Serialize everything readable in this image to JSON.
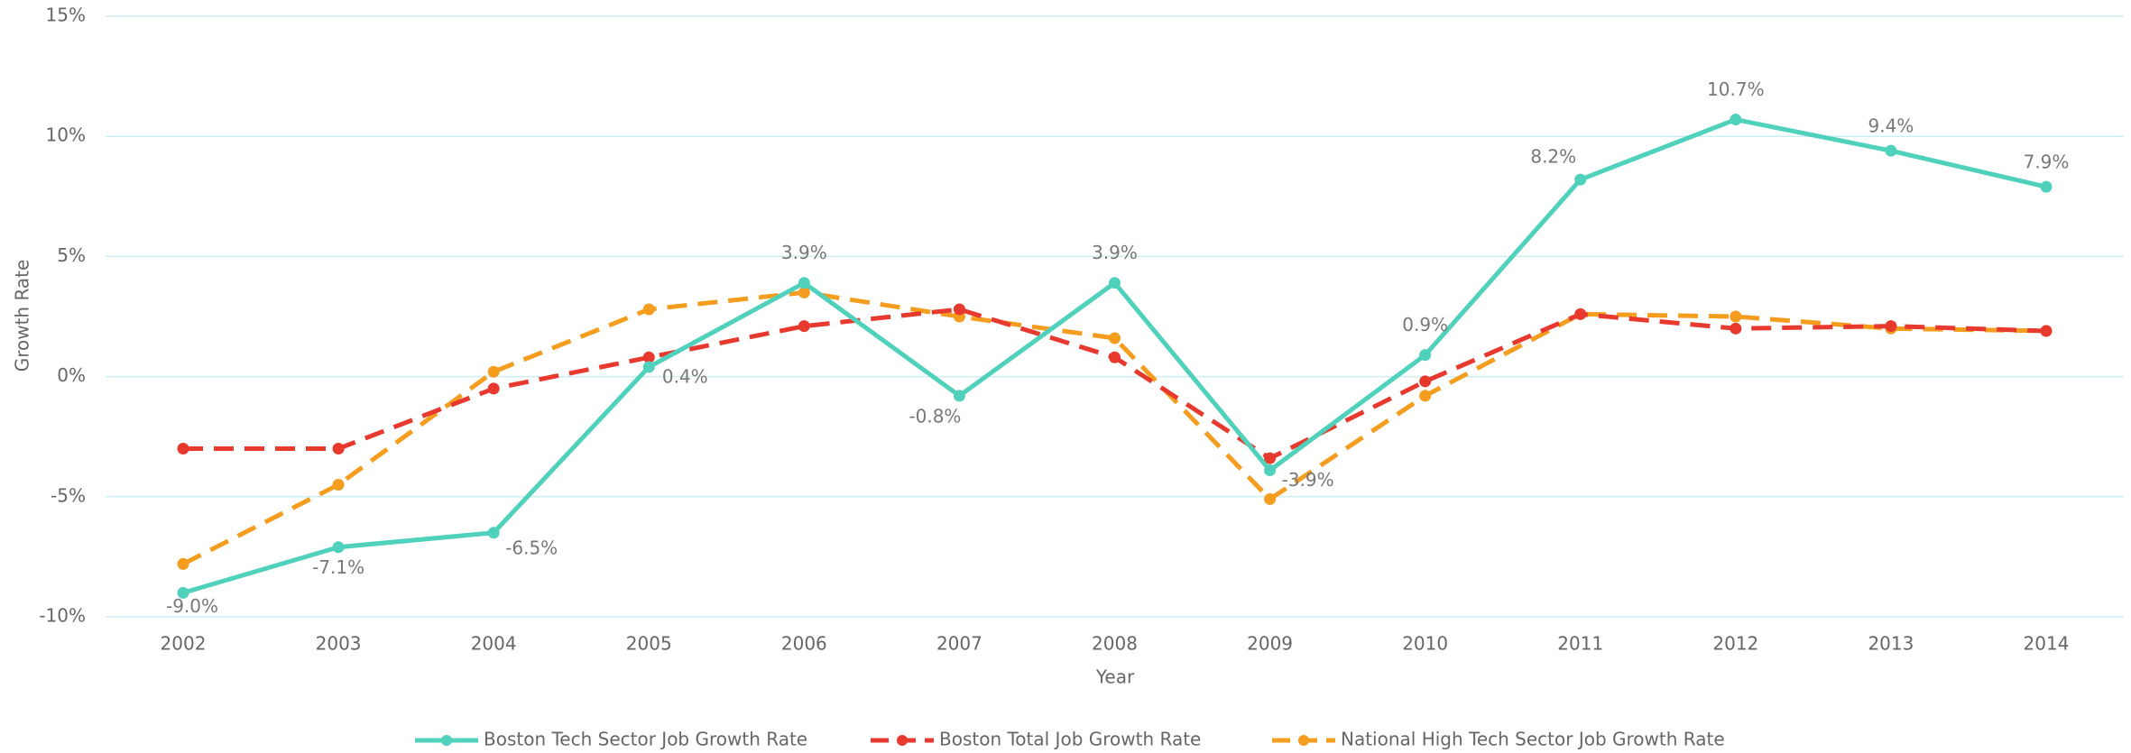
{
  "chart_data": {
    "type": "line",
    "x_label": "Year",
    "y_label": "Growth Rate",
    "categories": [
      "2002",
      "2003",
      "2004",
      "2005",
      "2006",
      "2007",
      "2008",
      "2009",
      "2010",
      "2011",
      "2012",
      "2013",
      "2014"
    ],
    "series": [
      {
        "name": "Boston Tech Sector Job Growth Rate",
        "color": "#4fd1bb",
        "dashed": false,
        "values": [
          -9.0,
          -7.1,
          -6.5,
          0.4,
          3.9,
          -0.8,
          3.9,
          -3.9,
          0.9,
          8.2,
          10.7,
          9.4,
          7.9
        ],
        "value_labels": [
          "-9.0%",
          "-7.1%",
          "-6.5%",
          "0.4%",
          "3.9%",
          "-0.8%",
          "3.9%",
          "-3.9%",
          "0.9%",
          "8.2%",
          "10.7%",
          "9.4%",
          "7.9%"
        ]
      },
      {
        "name": "Boston Total Job Growth Rate",
        "color": "#e8392f",
        "dashed": true,
        "values": [
          -3.0,
          -3.0,
          -0.5,
          0.8,
          2.1,
          2.8,
          0.8,
          -3.4,
          -0.2,
          2.6,
          2.0,
          2.1,
          1.9
        ]
      },
      {
        "name": "National High Tech Sector Job Growth Rate",
        "color": "#f59d1f",
        "dashed": true,
        "values": [
          -7.8,
          -4.5,
          0.2,
          2.8,
          3.5,
          2.5,
          1.6,
          -5.1,
          -0.8,
          2.6,
          2.5,
          2.0,
          1.9
        ]
      }
    ],
    "ylim": [
      -10,
      15
    ],
    "yticks": [
      {
        "value": -10,
        "label": "-10%"
      },
      {
        "value": -5,
        "label": "-5%"
      },
      {
        "value": 0,
        "label": "0%"
      },
      {
        "value": 5,
        "label": "5%"
      },
      {
        "value": 10,
        "label": "10%"
      },
      {
        "value": 15,
        "label": "15%"
      }
    ],
    "grid": true,
    "legend": "bottom"
  }
}
